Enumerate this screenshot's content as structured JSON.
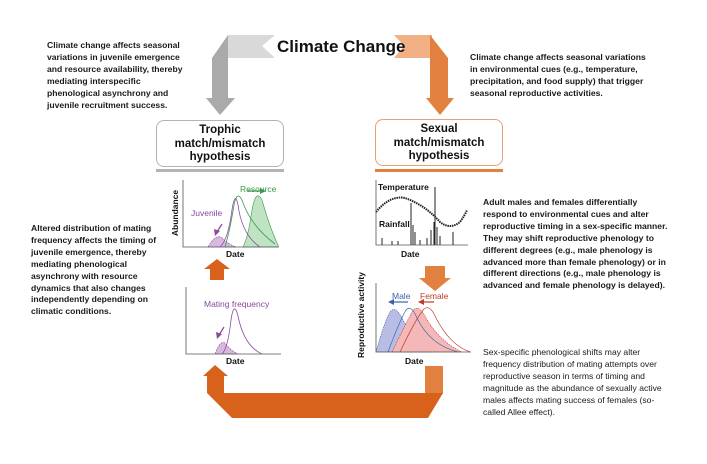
{
  "title": "Climate Change",
  "colors": {
    "gray_arrow": "#b3b3b3",
    "light_gray": "#d9d9d9",
    "orange": "#e2813f",
    "dark_orange": "#d8611c",
    "light_orange": "#f2b185",
    "resource": "#3a9a4e",
    "juvenile": "#8a4aa0",
    "male": "#3b63a8",
    "female": "#c0392b"
  },
  "boxes": {
    "trophic": {
      "line1": "Trophic",
      "line2": "match/mismatch",
      "line3": "hypothesis"
    },
    "sexual": {
      "line1": "Sexual",
      "line2": "match/mismatch",
      "line3": "hypothesis"
    }
  },
  "texts": {
    "top_left": "Climate change affects seasonal variations in juvenile emergence and resource availability, thereby mediating interspecific phenological asynchrony and juvenile recruitment success.",
    "top_right": "Climate change affects seasonal variations in environmental cues (e.g., temperature, precipitation, and food supply) that trigger seasonal reproductive activities.",
    "middle_left": "Altered distribution of mating frequency affects the timing of juvenile emergence, thereby mediating phenological asynchrony with resource dynamics that also changes independently depending on climatic conditions.",
    "middle_right": "Adult males and females differentially respond to environmental cues and alter reproductive timing in a sex-specific manner. They may shift reproductive phenology to different degrees (e.g., male phenology is advanced more than female phenology) or in different directions (e.g., male phenology is advanced and female phenology is delayed).",
    "bottom_right": "Sex-specific phenological shifts may alter frequency distribution of mating attempts over reproductive season in terms of timing and magnitude as the abundance of sexually active males affects mating success of females (so-called Allee effect)."
  },
  "charts": {
    "abundance": {
      "ylabel": "Abundance",
      "xlabel": "Date",
      "juvenile": "Juvenile",
      "resource": "Resource"
    },
    "mating": {
      "xlabel": "Date",
      "series": "Mating frequency"
    },
    "environment": {
      "xlabel": "Date",
      "temperature": "Temperature",
      "rainfall": "Rainfall"
    },
    "reproductive": {
      "ylabel": "Reproductive activity",
      "xlabel": "Date",
      "male": "Male",
      "female": "Female"
    }
  }
}
